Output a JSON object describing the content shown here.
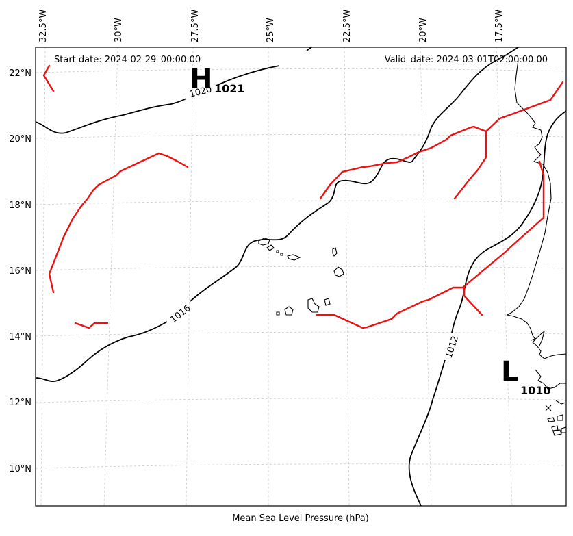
{
  "map": {
    "start_date": "Start date: 2024-02-29_00:00:00",
    "valid_date": "Valid_date: 2024-03-01T02:00:00.00",
    "xlabel": "Mean Sea Level Pressure (hPa)",
    "lon_ticks": [
      "32.5°W",
      "30°W",
      "27.5°W",
      "25°W",
      "22.5°W",
      "20°W",
      "17.5°W"
    ],
    "lat_ticks": [
      "22°N",
      "20°N",
      "18°N",
      "16°N",
      "14°N",
      "12°N",
      "10°N"
    ],
    "contour_labels": [
      "1020",
      "1016",
      "1012"
    ],
    "pressure_centers": [
      {
        "type": "H",
        "value": "1021"
      },
      {
        "type": "L",
        "value": "1010"
      }
    ],
    "colors": {
      "contour": "#000000",
      "front": "#ee1111",
      "grid": "#cccccc"
    }
  }
}
